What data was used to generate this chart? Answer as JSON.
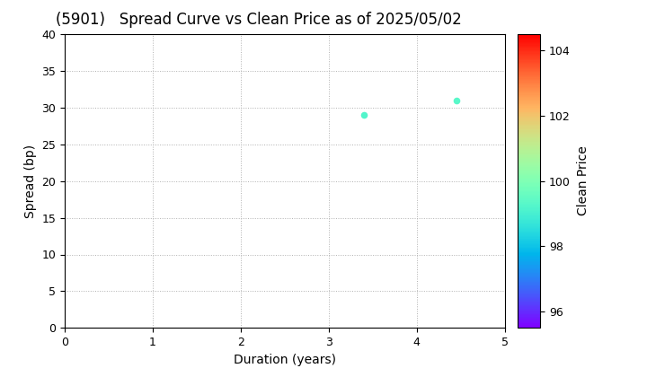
{
  "title": "(5901)   Spread Curve vs Clean Price as of 2025/05/02",
  "xlabel": "Duration (years)",
  "ylabel": "Spread (bp)",
  "colorbar_label": "Clean Price",
  "xlim": [
    0,
    5
  ],
  "ylim": [
    0,
    40
  ],
  "xticks": [
    0,
    1,
    2,
    3,
    4,
    5
  ],
  "yticks": [
    0,
    5,
    10,
    15,
    20,
    25,
    30,
    35,
    40
  ],
  "colorbar_min": 95.5,
  "colorbar_max": 104.5,
  "colorbar_ticks": [
    96,
    98,
    100,
    102,
    104
  ],
  "points": [
    {
      "duration": 3.4,
      "spread": 29.0,
      "price": 99.2
    },
    {
      "duration": 4.45,
      "spread": 31.0,
      "price": 99.3
    }
  ],
  "background_color": "#ffffff",
  "grid_color": "#b0b0b0",
  "grid_style": "dotted",
  "title_fontsize": 12,
  "axis_fontsize": 10,
  "colorbar_fontsize": 9
}
